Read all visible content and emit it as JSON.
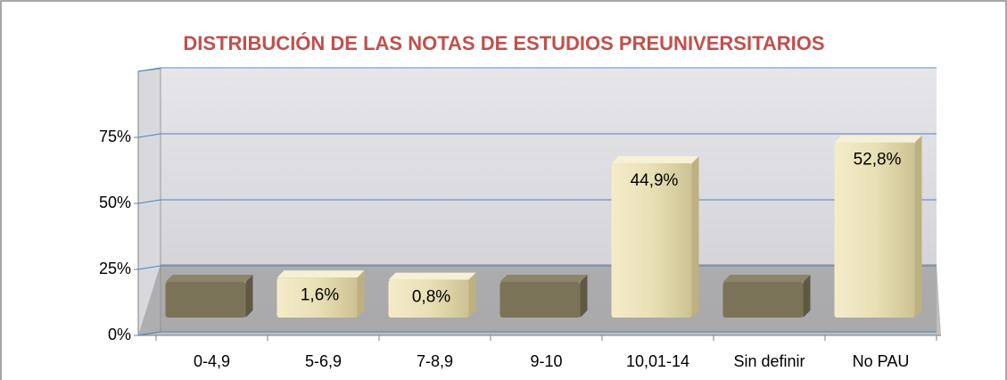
{
  "chart_data": {
    "type": "bar3d",
    "title": "DISTRIBUCIÓN DE LAS NOTAS DE ESTUDIOS PREUNIVERSITARIOS",
    "categories": [
      "0-4,9",
      "5-6,9",
      "7-8,9",
      "9-10",
      "10,01-14",
      "Sin definir",
      "No PAU"
    ],
    "values": [
      0,
      1.6,
      0.8,
      0,
      44.9,
      0,
      52.8
    ],
    "value_labels": [
      null,
      "1,6%",
      "0,8%",
      null,
      "44,9%",
      null,
      "52,8%"
    ],
    "color": "#e9e0b6",
    "ylim": [
      0,
      100
    ],
    "yticks": [
      {
        "value": 0,
        "label": "0%"
      },
      {
        "value": 25,
        "label": "25%"
      },
      {
        "value": 50,
        "label": "50%"
      },
      {
        "value": 75,
        "label": "75%"
      }
    ],
    "grid": true
  }
}
